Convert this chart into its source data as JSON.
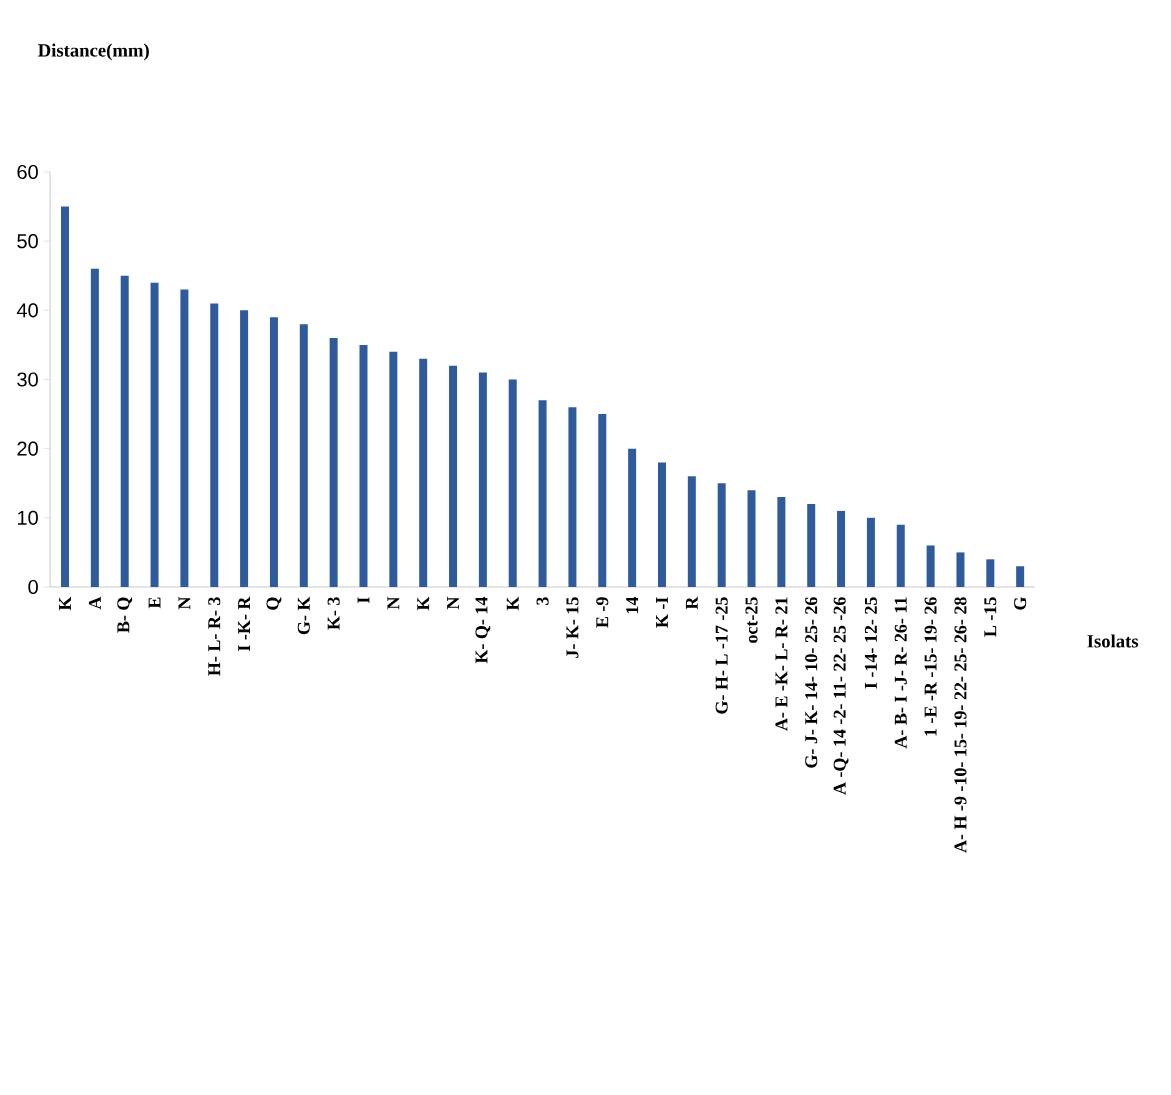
{
  "chart_data": {
    "type": "bar",
    "annotations": [
      "Distance(mm)"
    ],
    "xlabel": "Isolats",
    "categories": [
      "K",
      "A",
      "B- Q",
      "E",
      "N",
      "H- L- R- 3",
      "I -K- R",
      "Q",
      "G- K",
      "K- 3",
      "I",
      "N",
      "K",
      "N",
      "K- Q- 14",
      "K",
      "3",
      "J- K- 15",
      "E -9",
      "14",
      "K -I",
      "R",
      "G- H- L -17 -25",
      "oct-25",
      "A- E -K- L- R- 21",
      "G- J- K- 14- 10- 25- 26",
      "A -Q- 14 -2- 11- 22- 25 -26",
      "I -14- 12- 25",
      "A- B- I -J- R- 26- 11",
      "1 -E -R -15- 19- 26",
      "A- H -9 -10- 15- 19- 22- 25- 26- 28",
      "L -15",
      "G"
    ],
    "values": [
      55,
      46,
      45,
      44,
      43,
      41,
      40,
      39,
      38,
      36,
      35,
      34,
      33,
      32,
      31,
      30,
      27,
      26,
      25,
      20,
      18,
      16,
      15,
      14,
      13,
      12,
      11,
      10,
      9,
      6,
      5,
      4,
      3
    ],
    "color": "#2f5b9c",
    "ylim": [
      0,
      60
    ],
    "yticks": [
      0,
      10,
      20,
      30,
      40,
      50,
      60
    ]
  }
}
